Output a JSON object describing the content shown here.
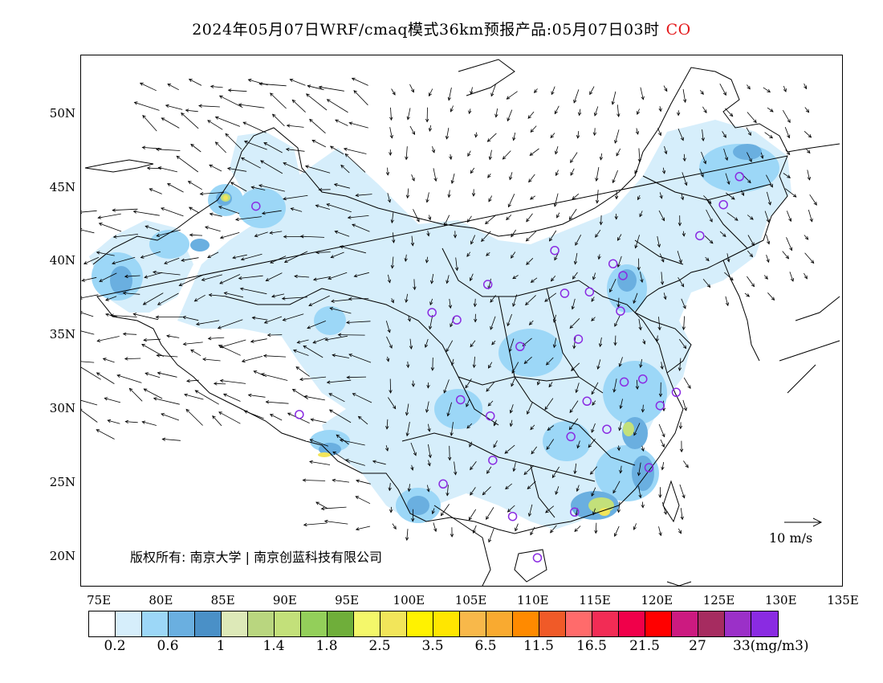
{
  "title": {
    "main": "2024年05月07日WRF/cmaq模式36km预报产品:05月07日03时",
    "pollutant": "CO"
  },
  "map": {
    "lat_ticks": [
      "50N",
      "45N",
      "40N",
      "35N",
      "30N",
      "25N",
      "20N"
    ],
    "lon_ticks": [
      "75E",
      "80E",
      "85E",
      "90E",
      "95E",
      "100E",
      "105E",
      "110E",
      "115E",
      "120E",
      "125E",
      "130E",
      "135E"
    ],
    "copyright": "版权所有: 南京大学 | 南京创蓝科技有限公司",
    "vector_reference": "10 m/s",
    "land_outline_color": "#000000",
    "station_marker_color": "#8a2be2",
    "stations": [
      {
        "lon": 87.6,
        "lat": 43.8
      },
      {
        "lon": 101.8,
        "lat": 36.6
      },
      {
        "lon": 103.8,
        "lat": 36.1
      },
      {
        "lon": 106.3,
        "lat": 38.5
      },
      {
        "lon": 111.7,
        "lat": 40.8
      },
      {
        "lon": 112.5,
        "lat": 37.9
      },
      {
        "lon": 114.5,
        "lat": 38.0
      },
      {
        "lon": 116.4,
        "lat": 39.9
      },
      {
        "lon": 117.2,
        "lat": 39.1
      },
      {
        "lon": 108.9,
        "lat": 34.3
      },
      {
        "lon": 113.6,
        "lat": 34.8
      },
      {
        "lon": 117.0,
        "lat": 36.7
      },
      {
        "lon": 123.4,
        "lat": 41.8
      },
      {
        "lon": 125.3,
        "lat": 43.9
      },
      {
        "lon": 126.6,
        "lat": 45.8
      },
      {
        "lon": 91.1,
        "lat": 29.7
      },
      {
        "lon": 104.1,
        "lat": 30.7
      },
      {
        "lon": 106.5,
        "lat": 29.6
      },
      {
        "lon": 114.3,
        "lat": 30.6
      },
      {
        "lon": 117.3,
        "lat": 31.9
      },
      {
        "lon": 118.8,
        "lat": 32.1
      },
      {
        "lon": 121.5,
        "lat": 31.2
      },
      {
        "lon": 120.2,
        "lat": 30.3
      },
      {
        "lon": 115.9,
        "lat": 28.7
      },
      {
        "lon": 113.0,
        "lat": 28.2
      },
      {
        "lon": 106.7,
        "lat": 26.6
      },
      {
        "lon": 102.7,
        "lat": 25.0
      },
      {
        "lon": 108.3,
        "lat": 22.8
      },
      {
        "lon": 113.3,
        "lat": 23.1
      },
      {
        "lon": 119.3,
        "lat": 26.1
      },
      {
        "lon": 110.3,
        "lat": 20.0
      }
    ]
  },
  "legend": {
    "colors": [
      "#ffffff",
      "#d6eefb",
      "#9cd7f7",
      "#6aafe0",
      "#4a90c7",
      "#dde9b8",
      "#b9d67f",
      "#c3e07a",
      "#93cf5a",
      "#6fae3a",
      "#f4f76a",
      "#f2e55a",
      "#fff200",
      "#ffe600",
      "#f8b84a",
      "#f9aa30",
      "#ff8a00",
      "#f05a28",
      "#ff6b6b",
      "#f22c55",
      "#f0004a",
      "#ff0000",
      "#cc1a80",
      "#a62c60",
      "#9b30c8",
      "#8a2be2"
    ],
    "labels": [
      "0.2",
      "0.6",
      "1",
      "1.4",
      "1.8",
      "2.5",
      "3.5",
      "6.5",
      "11.5",
      "16.5",
      "21.5",
      "27",
      "33(mg/m3)"
    ]
  }
}
